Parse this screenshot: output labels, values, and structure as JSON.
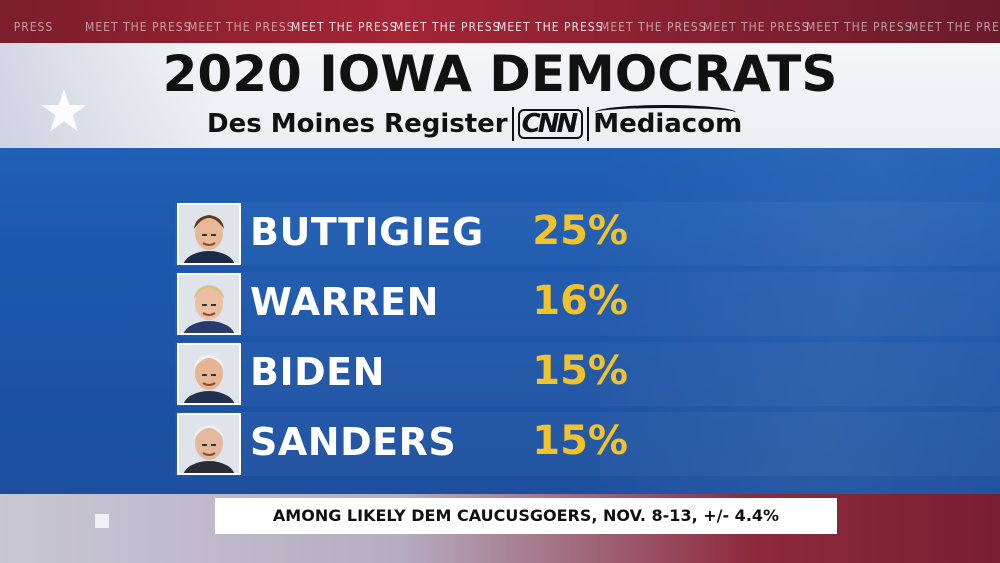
{
  "ticker": {
    "items": [
      "PRESS",
      "MEET THE PRESS",
      "MEET THE PRESS",
      "MEET THE PRESS",
      "MEET THE PRESS",
      "MEET THE PRESS",
      "MEET THE PRESS",
      "MEET THE PRESS",
      "MEET THE PRESS",
      "MEET THE PRESS",
      "MEE"
    ]
  },
  "header": {
    "title": "2020 IOWA DEMOCRATS",
    "sponsor_register": "Des Moines Register",
    "sponsor_cnn": "CNN",
    "sponsor_mediacom": "Mediacom"
  },
  "chart_data": {
    "type": "table",
    "candidates": [
      "BUTTIGIEG",
      "WARREN",
      "BIDEN",
      "SANDERS"
    ],
    "values": [
      25,
      16,
      15,
      15
    ],
    "labels": [
      "25%",
      "16%",
      "15%",
      "15%"
    ],
    "unit": "%"
  },
  "footnote": "AMONG LIKELY DEM CAUCUSGOERS, NOV. 8-13, +/- 4.4%",
  "colors": {
    "panel": "#1f5fb5",
    "percent": "#f2c22a",
    "name": "#ffffff",
    "title": "#111111"
  },
  "icons": [
    "star-icon",
    "candidate-photo"
  ]
}
